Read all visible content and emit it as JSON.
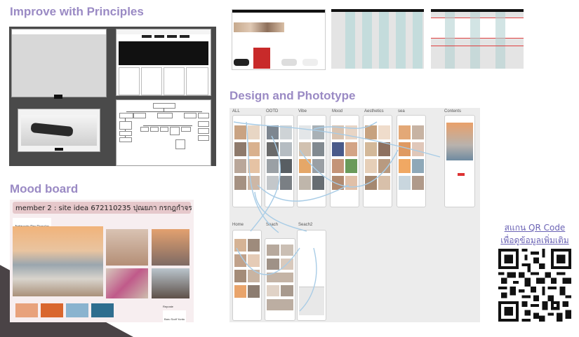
{
  "sections": {
    "principles_title": "Improve with Principles",
    "moodboard_title": "Mood board",
    "design_title": "Design and Phototype"
  },
  "moodboard": {
    "header": "member 2 : site idea 672110235 ปุณยภา กรกฎกำจร",
    "font_label": "Antipasto Pro Regular",
    "font_label2": "Baru Sodf Yurdu",
    "font_label3": "Reposte",
    "swatches": [
      "#e8a27c",
      "#d9662e",
      "#8ab3cf",
      "#2f6e8f"
    ]
  },
  "design": {
    "columns": [
      "ALL",
      "OOTD",
      "Vibe",
      "Mood",
      "Aesthetics",
      "sea",
      "Contents"
    ],
    "row2_labels": [
      "Home",
      "Seach",
      "Seach2"
    ]
  },
  "qr": {
    "line1": "สแกน QR Code",
    "line2": "เพื่อดูข้อมูลเพิ่มเติม"
  },
  "colors": {
    "title": "#9a8ac4",
    "link": "#6b63b5",
    "dark_panel": "#4a4a4a"
  }
}
